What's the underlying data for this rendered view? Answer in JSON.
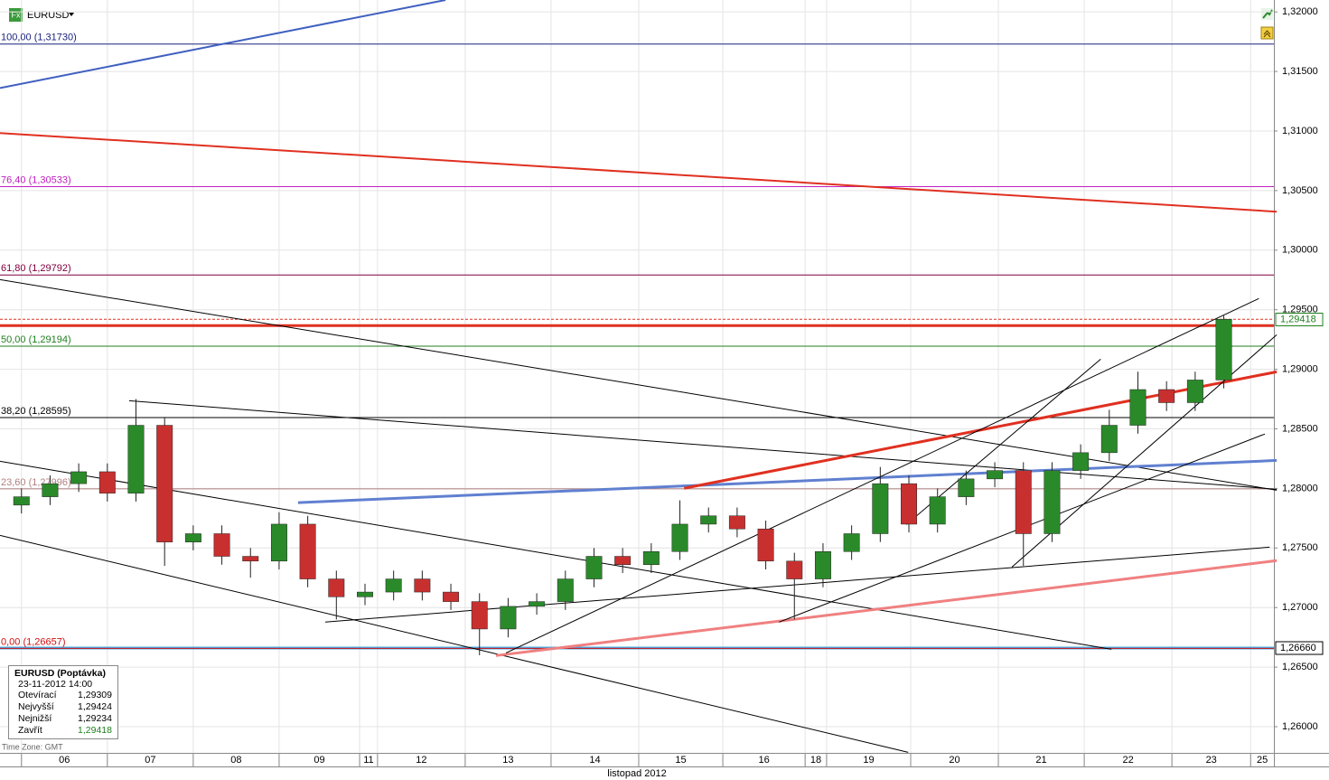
{
  "chart_data": {
    "type": "candlestick",
    "symbol": "EURUSD",
    "time_zone": "Time Zone: GMT",
    "x_label": "listopad 2012",
    "xlim": [
      -6,
      350
    ],
    "ylim": [
      1.2578,
      1.321
    ],
    "yticks": [
      {
        "value": 1.26,
        "label": "1,26000"
      },
      {
        "value": 1.265,
        "label": "1,26500"
      },
      {
        "value": 1.27,
        "label": "1,27000"
      },
      {
        "value": 1.275,
        "label": "1,27500"
      },
      {
        "value": 1.28,
        "label": "1,28000"
      },
      {
        "value": 1.285,
        "label": "1,28500"
      },
      {
        "value": 1.29,
        "label": "1,29000"
      },
      {
        "value": 1.295,
        "label": "1,29500"
      },
      {
        "value": 1.3,
        "label": "1,30000"
      },
      {
        "value": 1.305,
        "label": "1,30500"
      },
      {
        "value": 1.31,
        "label": "1,31000"
      },
      {
        "value": 1.315,
        "label": "1,31500"
      },
      {
        "value": 1.32,
        "label": "1,32000"
      }
    ],
    "days": [
      {
        "start": 0,
        "label": "06"
      },
      {
        "start": 24,
        "label": "07"
      },
      {
        "start": 48,
        "label": "08"
      },
      {
        "start": 72,
        "label": "09"
      },
      {
        "start": 94.5,
        "label": "11"
      },
      {
        "start": 99.5,
        "label": "12"
      },
      {
        "start": 124,
        "label": "13"
      },
      {
        "start": 148,
        "label": "14"
      },
      {
        "start": 172.5,
        "label": "15"
      },
      {
        "start": 196,
        "label": "16"
      },
      {
        "start": 219,
        "label": "18"
      },
      {
        "start": 225,
        "label": "19"
      },
      {
        "start": 248.5,
        "label": "20"
      },
      {
        "start": 273,
        "label": "21"
      },
      {
        "start": 297,
        "label": "22"
      },
      {
        "start": 321.5,
        "label": "23"
      },
      {
        "start": 343.5,
        "label": "25"
      }
    ],
    "up_color": "#2a8a2a",
    "down_color": "#c83030",
    "x": [
      0,
      8,
      16,
      24,
      32,
      40,
      48,
      56,
      64,
      72,
      80,
      88,
      96,
      104,
      112,
      120,
      128,
      136,
      144,
      152,
      160,
      168,
      176,
      184,
      192,
      200,
      208,
      216,
      224,
      232,
      240,
      248,
      256,
      264,
      272,
      280,
      288,
      296,
      304,
      312,
      320,
      328,
      336
    ],
    "open": [
      1.2786,
      1.2793,
      1.2804,
      1.2814,
      1.2796,
      1.2853,
      1.2755,
      1.2762,
      1.2743,
      1.2739,
      1.277,
      1.2724,
      1.2709,
      1.2713,
      1.2724,
      1.2713,
      1.2705,
      1.2682,
      1.2701,
      1.2705,
      1.2724,
      1.2743,
      1.2736,
      1.2747,
      1.277,
      1.2777,
      1.2766,
      1.2739,
      1.2724,
      1.2747,
      1.2762,
      1.2804,
      1.277,
      1.2793,
      1.2808,
      1.2815,
      1.2762,
      1.2815,
      1.283,
      1.2853,
      1.2883,
      1.2872,
      1.2891
    ],
    "high": [
      1.28,
      1.2811,
      1.2821,
      1.2821,
      1.2875,
      1.286,
      1.2769,
      1.2769,
      1.275,
      1.278,
      1.2777,
      1.2731,
      1.272,
      1.2731,
      1.2731,
      1.272,
      1.2712,
      1.2708,
      1.2712,
      1.2731,
      1.275,
      1.275,
      1.2754,
      1.279,
      1.2784,
      1.2784,
      1.2773,
      1.2746,
      1.2754,
      1.2769,
      1.2818,
      1.2811,
      1.28,
      1.2815,
      1.2822,
      1.2822,
      1.2822,
      1.2837,
      1.2866,
      1.2898,
      1.289,
      1.2898,
      1.2945
    ],
    "low": [
      1.2779,
      1.2786,
      1.2797,
      1.2789,
      1.2789,
      1.2735,
      1.2748,
      1.2736,
      1.2725,
      1.2732,
      1.2717,
      1.269,
      1.2702,
      1.2706,
      1.2706,
      1.2698,
      1.266,
      1.2675,
      1.2694,
      1.2698,
      1.2717,
      1.2729,
      1.2729,
      1.274,
      1.2763,
      1.2759,
      1.2732,
      1.269,
      1.2717,
      1.274,
      1.2755,
      1.2763,
      1.2763,
      1.2786,
      1.2801,
      1.2735,
      1.2755,
      1.2808,
      1.2823,
      1.2846,
      1.2865,
      1.2865,
      1.2884
    ],
    "close": [
      1.2793,
      1.2804,
      1.2814,
      1.2796,
      1.2853,
      1.2755,
      1.2762,
      1.2743,
      1.2739,
      1.277,
      1.2724,
      1.2709,
      1.2713,
      1.2724,
      1.2713,
      1.2705,
      1.2682,
      1.2701,
      1.2705,
      1.2724,
      1.2743,
      1.2736,
      1.2747,
      1.277,
      1.2777,
      1.2766,
      1.2739,
      1.2724,
      1.2747,
      1.2762,
      1.2804,
      1.277,
      1.2793,
      1.2808,
      1.2815,
      1.2762,
      1.2815,
      1.283,
      1.2853,
      1.2883,
      1.2872,
      1.2891,
      1.2942
    ],
    "fib_levels": [
      {
        "label": "100,00 (1,31730)",
        "value": 1.3173,
        "color": "#1a237e"
      },
      {
        "label": "76,40 (1,30533)",
        "value": 1.30533,
        "color": "#c020c0"
      },
      {
        "label": "61,80 (1,29792)",
        "value": 1.29792,
        "color": "#800040"
      },
      {
        "label": "50,00 (1,29194)",
        "value": 1.29194,
        "color": "#208020"
      },
      {
        "label": "38,20 (1,28595)",
        "value": 1.28595,
        "color": "#000000"
      },
      {
        "label": "23,60 (1,27996)",
        "value": 1.27996,
        "color": "#b08080"
      },
      {
        "label": "0,00 (1,26657)",
        "value": 1.26657,
        "color": "#d01010"
      }
    ],
    "hlines": [
      {
        "value": 1.29367,
        "color": "#e03020",
        "width": 3
      },
      {
        "value": 1.2942,
        "color": "#e03020",
        "width": 1
      },
      {
        "value": 1.2666,
        "color": "#4aa8e0",
        "width": 3
      }
    ],
    "price_labels": [
      {
        "value": 1.29418,
        "label": "1,29418",
        "color": "#208020"
      },
      {
        "value": 1.2666,
        "label": "1,26660",
        "color": "#000000"
      }
    ],
    "drawings": [
      {
        "x": [
          -6,
          118.5
        ],
        "y": [
          1.31361,
          1.321
        ],
        "color": "#4060c0",
        "width": 2
      },
      {
        "x": [
          -6,
          350.8
        ],
        "y": [
          1.30983,
          1.30323
        ],
        "color": "#e03020",
        "width": 2
      },
      {
        "x": [
          -6,
          350.8
        ],
        "y": [
          1.29753,
          1.27985
        ],
        "color": "#000000",
        "width": 1
      },
      {
        "x": [
          30.1,
          350.8
        ],
        "y": [
          1.28736,
          1.27993
        ],
        "color": "#000000",
        "width": 1
      },
      {
        "x": [
          -6,
          304.6
        ],
        "y": [
          1.28228,
          1.2665
        ],
        "color": "#000000",
        "width": 1
      },
      {
        "x": [
          -6,
          247.8
        ],
        "y": [
          1.27606,
          1.25785
        ],
        "color": "#000000",
        "width": 1
      },
      {
        "x": [
          77.3,
          350.8
        ],
        "y": [
          1.27881,
          1.28235
        ],
        "color": "#6080d0",
        "width": 3
      },
      {
        "x": [
          185.2,
          350.8
        ],
        "y": [
          1.28001,
          1.28979
        ],
        "color": "#e03020",
        "width": 3
      },
      {
        "x": [
          132.6,
          350.8
        ],
        "y": [
          1.26597,
          1.27394
        ],
        "color": "#f08080",
        "width": 3
      },
      {
        "x": [
          135.4,
          345.8
        ],
        "y": [
          1.26619,
          1.29594
        ],
        "color": "#000000",
        "width": 1
      },
      {
        "x": [
          84.9,
          348.8
        ],
        "y": [
          1.26878,
          1.27507
        ],
        "color": "#000000",
        "width": 1
      },
      {
        "x": [
          211.7,
          347.5
        ],
        "y": [
          1.26878,
          1.28457
        ],
        "color": "#000000",
        "width": 1
      },
      {
        "x": [
          276.8,
          350.8
        ],
        "y": [
          1.2734,
          1.2929
        ],
        "color": "#000000",
        "width": 1
      },
      {
        "x": [
          247.3,
          301.6
        ],
        "y": [
          1.27697,
          1.29085
        ],
        "color": "#000000",
        "width": 1
      }
    ],
    "info": {
      "title": "EURUSD (Poptávka)",
      "date": "23-11-2012 14:00",
      "rows": [
        [
          "Otevírací",
          "1,29309"
        ],
        [
          "Nejvyšší",
          "1,29424"
        ],
        [
          "Nejnižší",
          "1,29234"
        ],
        [
          "Zavřít",
          "1,29418"
        ]
      ]
    }
  }
}
